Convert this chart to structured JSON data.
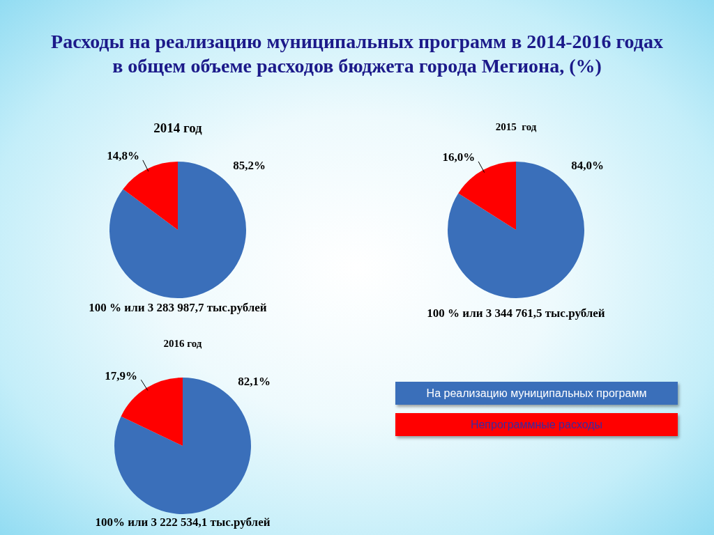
{
  "chart_data": [
    {
      "type": "other",
      "title": "Расходы на реализацию муниципальных программ в 2014-2016 годах в общем объеме расходов бюджета города Мегиона, (%)"
    },
    {
      "type": "pie",
      "title": "2014 год",
      "categories": [
        null,
        null
      ],
      "values": [
        85.2,
        14.8
      ],
      "colors": [
        "#3a6fba",
        "#ff0000"
      ],
      "value_labels": [
        "85,2%",
        "14,8%"
      ],
      "annotations": [
        "100 % или 3 283 987,7 тыс.рублей"
      ]
    },
    {
      "type": "pie",
      "title": "2015  год",
      "categories": [
        null,
        null
      ],
      "values": [
        84.0,
        16.0
      ],
      "colors": [
        "#3a6fba",
        "#ff0000"
      ],
      "value_labels": [
        "84,0%",
        "16,0%"
      ],
      "annotations": [
        "100 % или 3 344 761,5 тыс.рублей"
      ]
    },
    {
      "type": "pie",
      "title": "2016 год",
      "categories": [
        "На реализацию муниципальных программ",
        "Непрограммные расходы"
      ],
      "values": [
        82.1,
        17.9
      ],
      "colors": [
        "#3a6fba",
        "#ff0000"
      ],
      "value_labels": [
        "82,1%",
        "17,9%"
      ],
      "annotations": [
        "100% или 3 222 534,1 тыс.рублей"
      ],
      "legend": "right"
    }
  ]
}
